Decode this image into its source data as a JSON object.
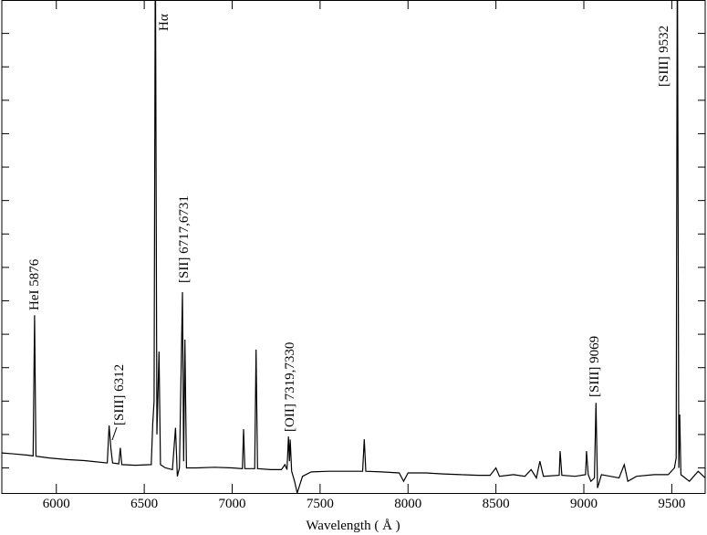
{
  "chart_data": {
    "type": "line",
    "xlabel": "Wavelength  ( Å )",
    "xlim": [
      5690,
      9690
    ],
    "xticks": [
      6000,
      6500,
      7000,
      7500,
      8000,
      8500,
      9000,
      9500
    ],
    "ylim": [
      0.25,
      15
    ],
    "yticks": [
      1,
      2,
      3,
      4,
      5,
      6,
      7,
      8,
      9,
      10,
      11,
      12,
      13,
      14
    ],
    "color": "#000000",
    "annotations": [
      "HeI 5876",
      "[SIII] 6312",
      "Hα",
      "[SII] 6717,6731",
      "[OII] 7319,7330",
      "[SIII] 9069",
      "[SIII] 9532"
    ],
    "x": [
      5690,
      5760,
      5840,
      5868,
      5876,
      5884,
      5960,
      6060,
      6160,
      6290,
      6300,
      6310,
      6320,
      6355,
      6364,
      6372,
      6450,
      6540,
      6548,
      6556,
      6563,
      6572,
      6584,
      6592,
      6620,
      6660,
      6678,
      6688,
      6700,
      6717,
      6724,
      6731,
      6740,
      6800,
      6900,
      7000,
      7058,
      7065,
      7072,
      7128,
      7136,
      7144,
      7220,
      7280,
      7300,
      7312,
      7320,
      7326,
      7330,
      7338,
      7355,
      7370,
      7400,
      7450,
      7550,
      7650,
      7742,
      7751,
      7760,
      7850,
      7950,
      7975,
      8000,
      8100,
      8200,
      8300,
      8400,
      8467,
      8500,
      8520,
      8600,
      8665,
      8700,
      8730,
      8750,
      8770,
      8860,
      8865,
      8875,
      8950,
      9010,
      9015,
      9025,
      9040,
      9060,
      9069,
      9078,
      9100,
      9150,
      9200,
      9230,
      9250,
      9300,
      9400,
      9480,
      9515,
      9525,
      9532,
      9540,
      9545,
      9552,
      9600,
      9650,
      9690
    ],
    "y": [
      1.45,
      1.42,
      1.38,
      1.36,
      5.57,
      1.35,
      1.3,
      1.25,
      1.22,
      1.15,
      2.27,
      1.6,
      1.15,
      1.12,
      1.6,
      1.1,
      1.08,
      1.1,
      2.3,
      3.0,
      17,
      2.0,
      4.48,
      1.1,
      1.0,
      0.95,
      2.2,
      0.75,
      1.0,
      6.26,
      1.2,
      4.84,
      1.0,
      1.0,
      1.02,
      1.0,
      0.98,
      2.16,
      0.98,
      0.98,
      4.54,
      0.98,
      0.95,
      0.95,
      1.1,
      0.95,
      1.94,
      1.2,
      1.85,
      0.9,
      0.6,
      0.25,
      0.75,
      0.88,
      0.9,
      0.9,
      0.9,
      1.86,
      0.9,
      0.88,
      0.85,
      0.6,
      0.85,
      0.85,
      0.82,
      0.8,
      0.78,
      0.78,
      1.0,
      0.75,
      0.8,
      0.75,
      0.95,
      0.7,
      1.2,
      0.75,
      0.78,
      1.5,
      0.78,
      0.75,
      0.8,
      1.5,
      0.8,
      0.6,
      0.7,
      2.95,
      0.4,
      0.8,
      0.75,
      0.7,
      1.1,
      0.6,
      0.75,
      0.8,
      0.8,
      1.0,
      1.3,
      17,
      1.0,
      2.6,
      0.8,
      0.6,
      0.9,
      0.7
    ]
  }
}
